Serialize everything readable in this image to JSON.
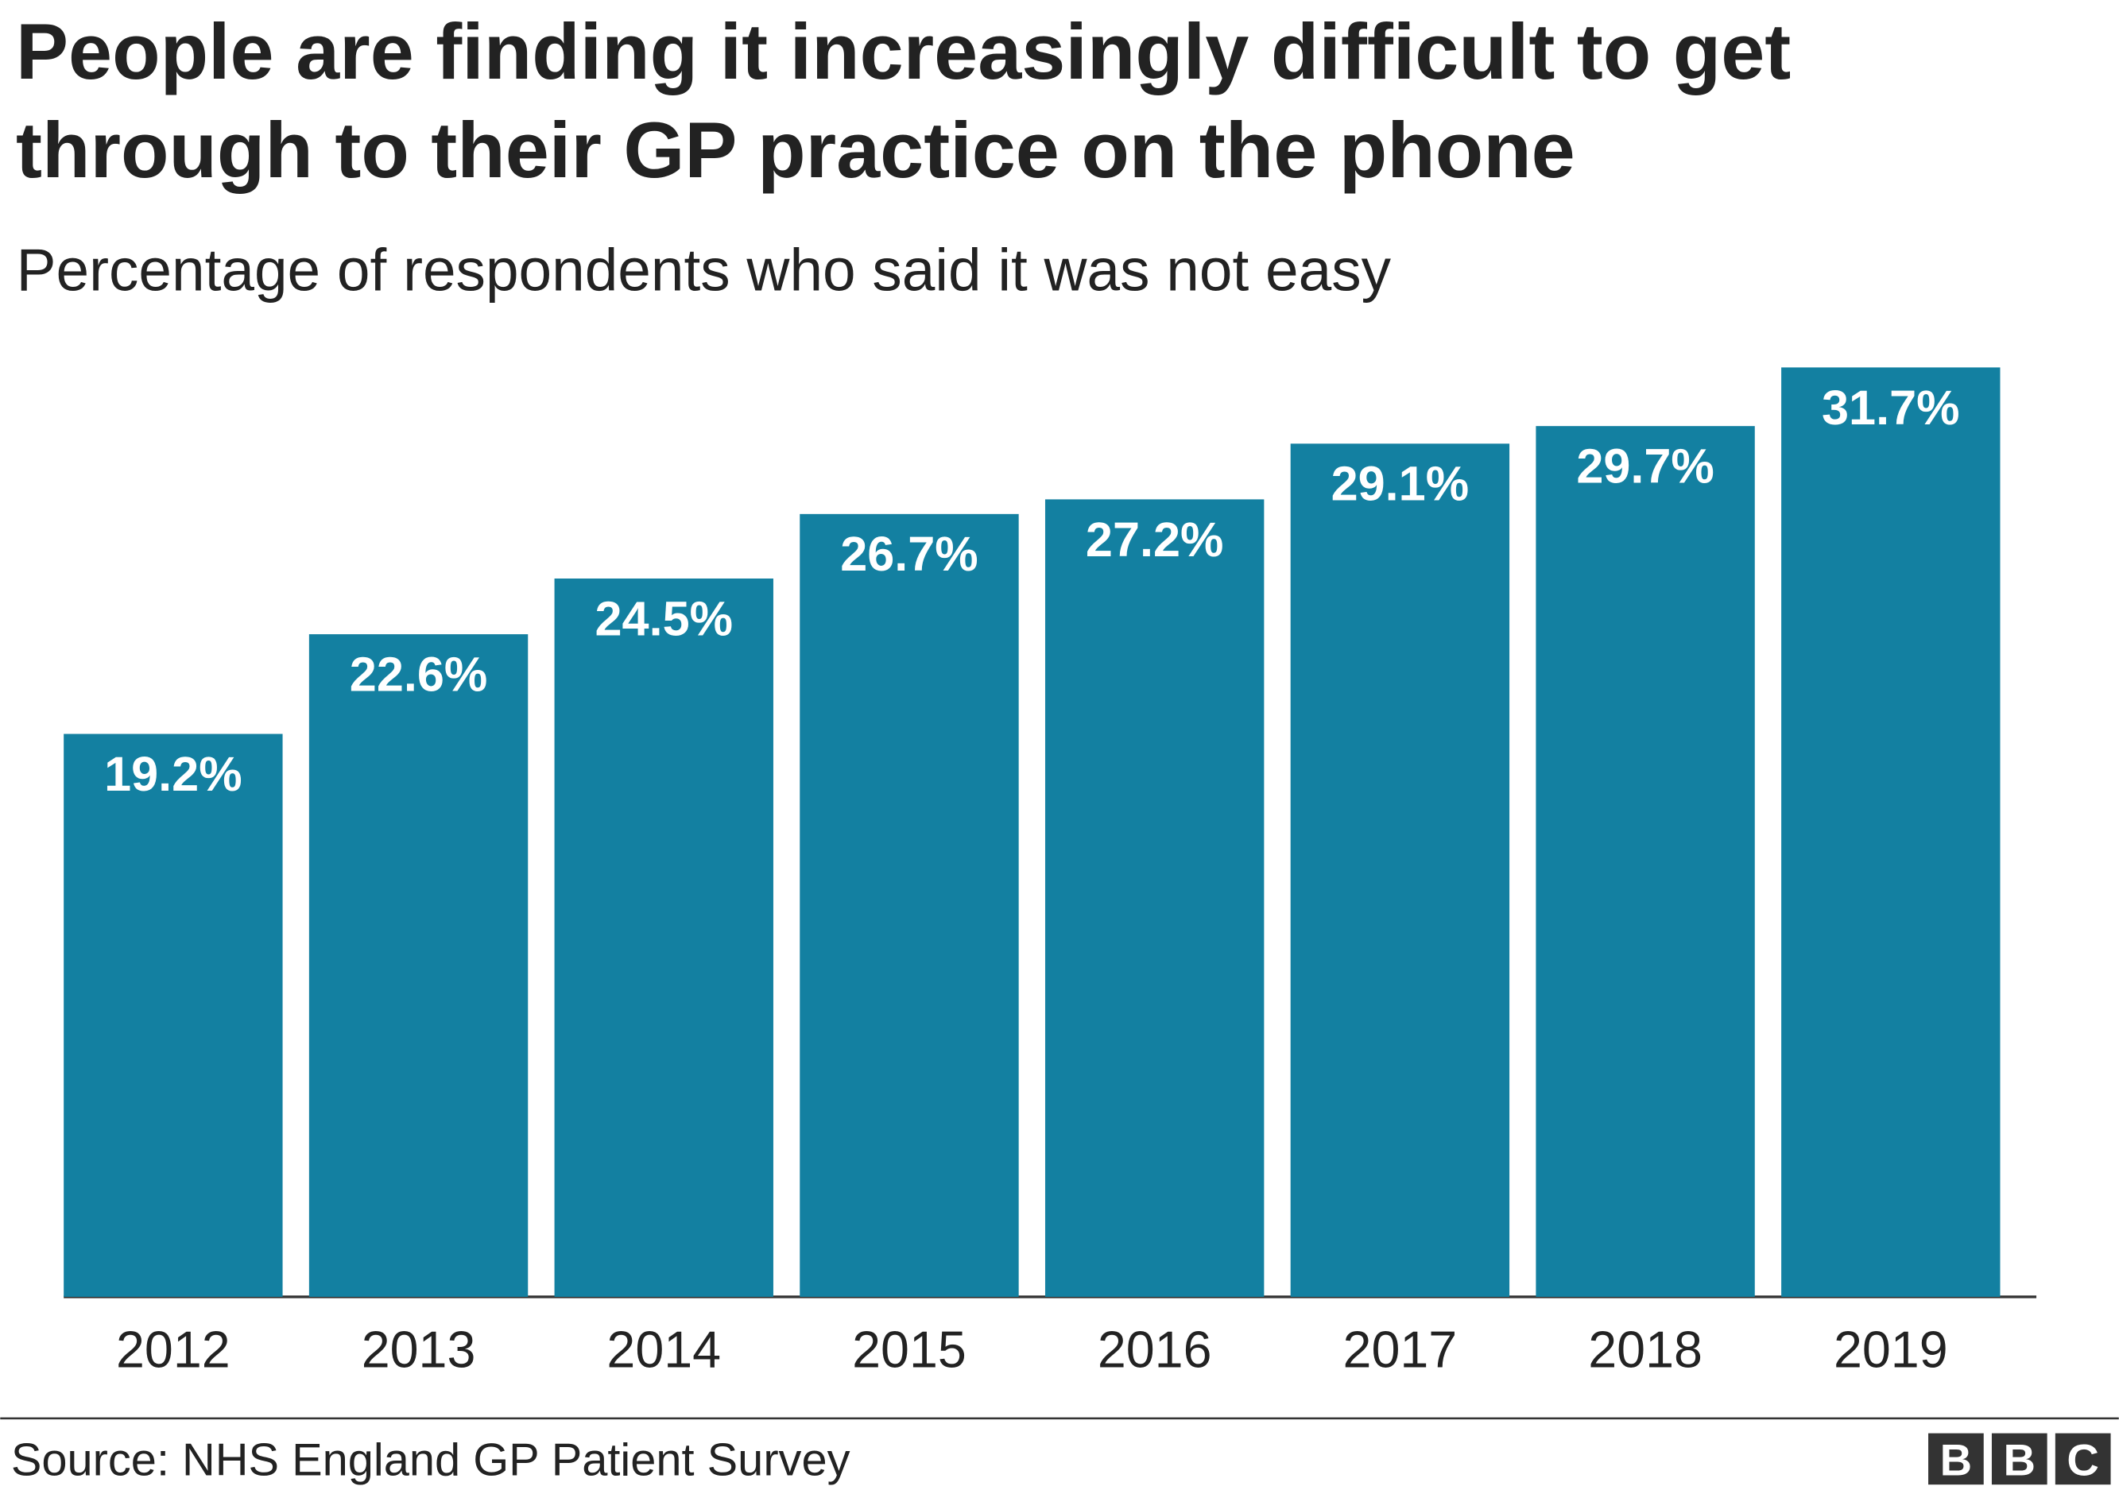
{
  "chart_data": {
    "type": "bar",
    "title": "People are finding it increasingly difficult to get through to their GP practice on the phone",
    "subtitle": "Percentage of respondents who said it was not easy",
    "categories": [
      "2012",
      "2013",
      "2014",
      "2015",
      "2016",
      "2017",
      "2018",
      "2019"
    ],
    "values": [
      19.2,
      22.6,
      24.5,
      26.7,
      27.2,
      29.1,
      29.7,
      31.7
    ],
    "value_labels": [
      "19.2%",
      "22.6%",
      "24.5%",
      "26.7%",
      "27.2%",
      "29.1%",
      "29.7%",
      "31.7%"
    ],
    "color": "#1380a1",
    "source": "Source: NHS England GP Patient Survey",
    "logo": [
      "B",
      "B",
      "C"
    ]
  }
}
